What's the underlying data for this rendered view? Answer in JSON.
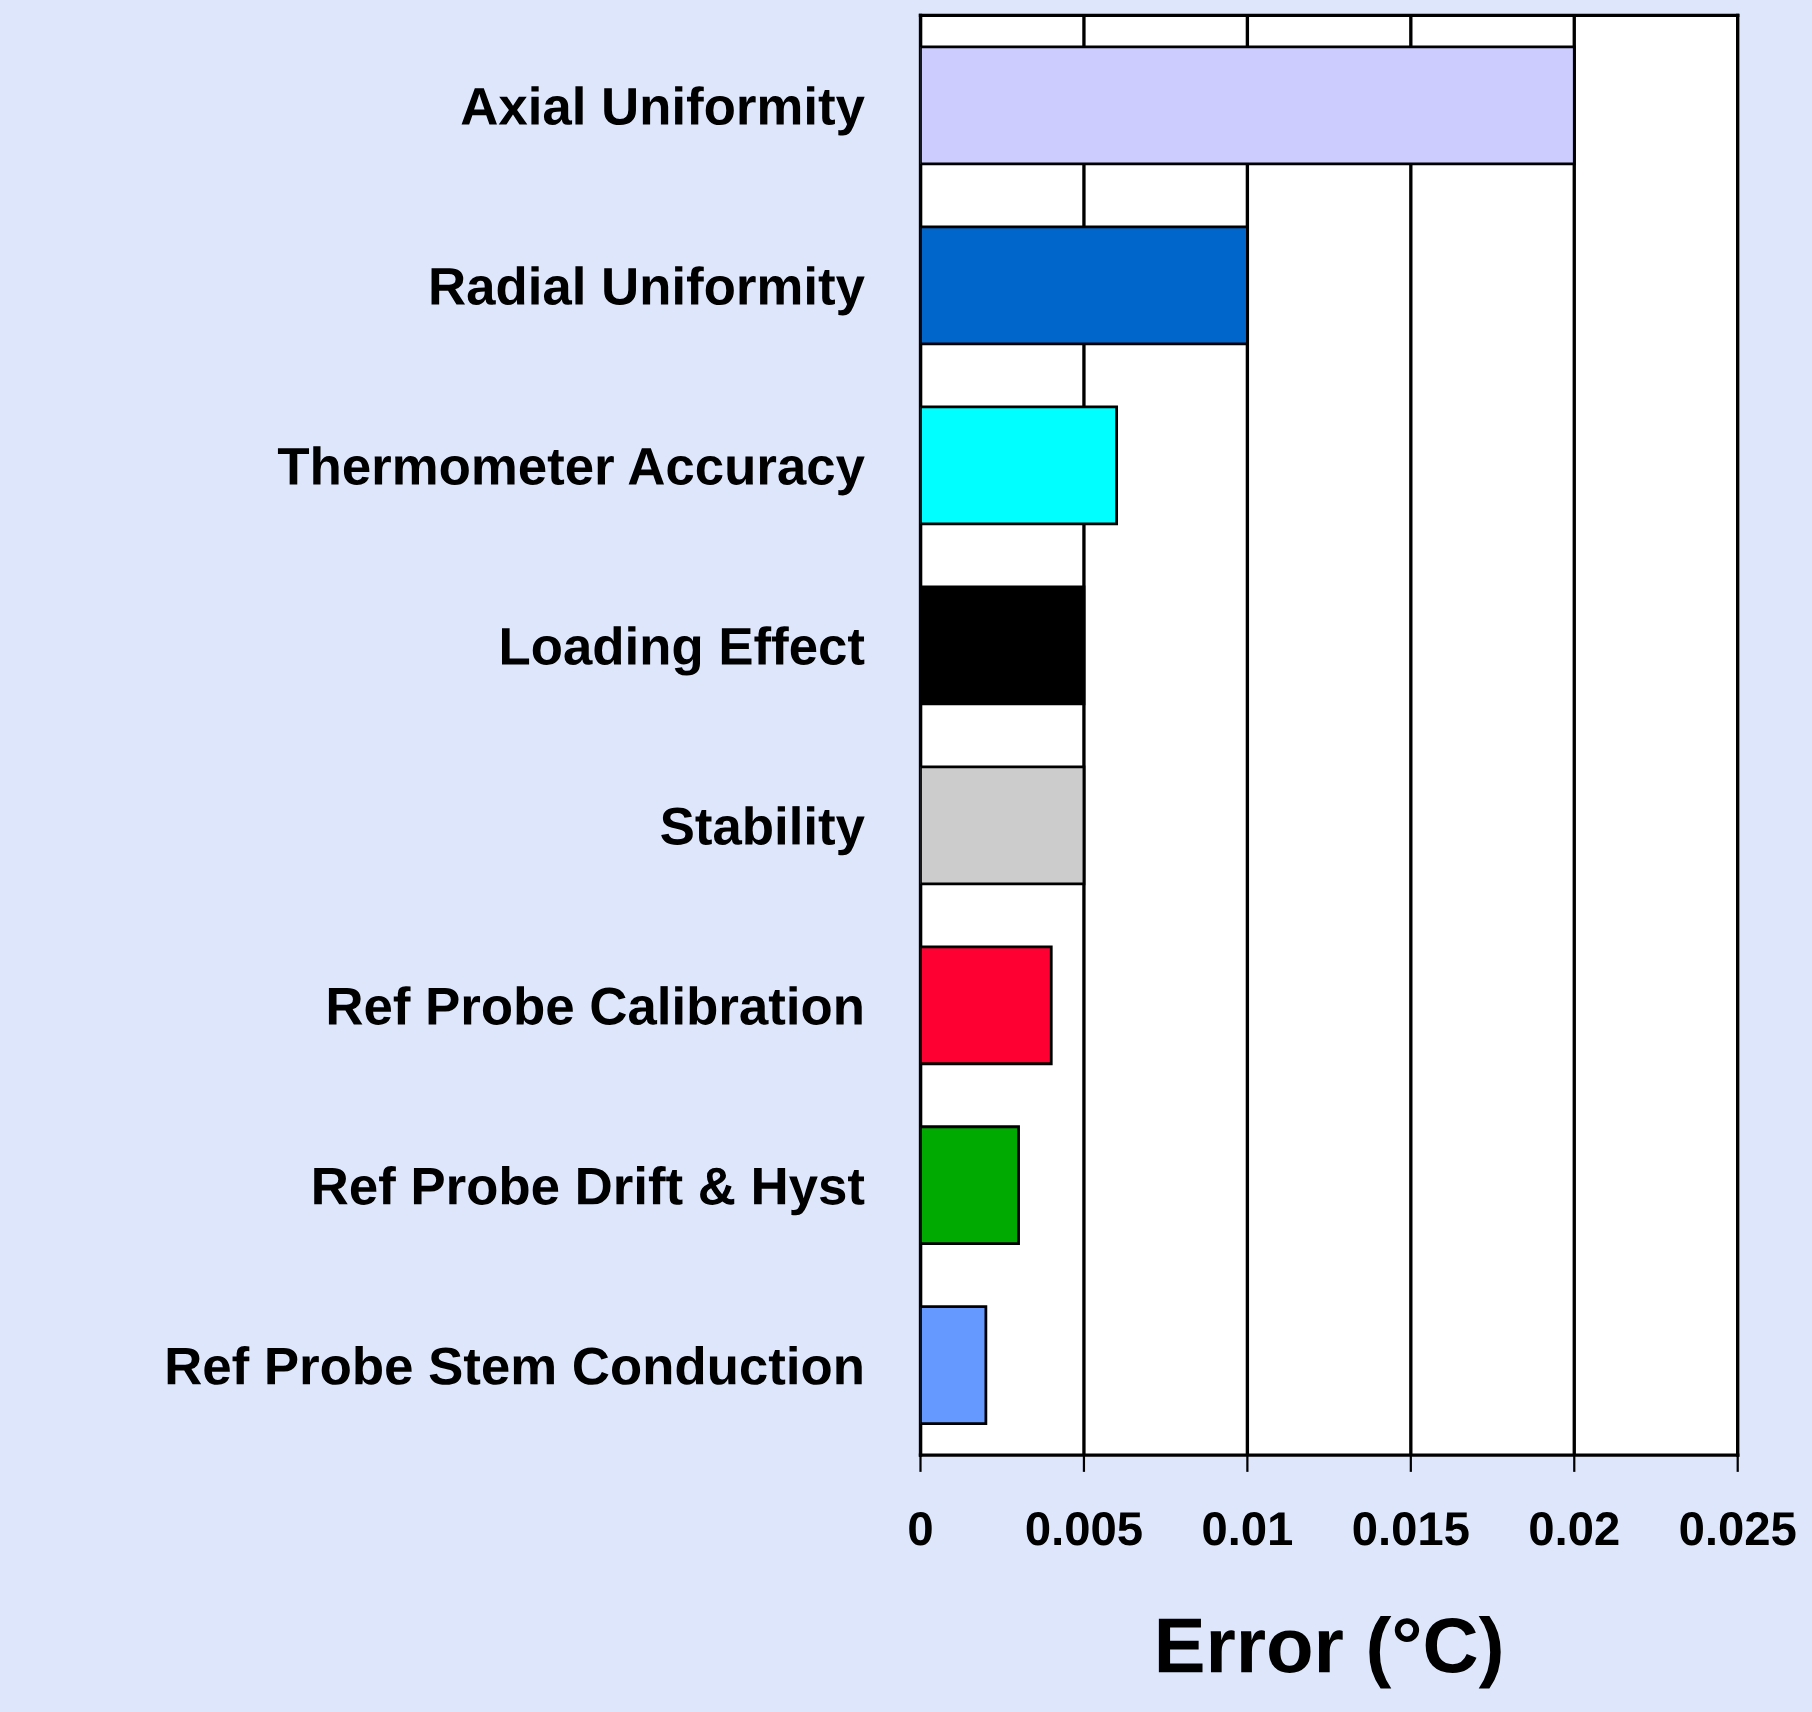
{
  "chart_data": {
    "type": "bar",
    "orientation": "horizontal",
    "xlabel": "Error (°C)",
    "categories": [
      "Axial Uniformity",
      "Radial Uniformity",
      "Thermometer Accuracy",
      "Loading Effect",
      "Stability",
      "Ref Probe Calibration",
      "Ref Probe Drift & Hyst",
      "Ref Probe Stem Conduction"
    ],
    "values": [
      0.02,
      0.01,
      0.006,
      0.005,
      0.005,
      0.004,
      0.003,
      0.002
    ],
    "colors": [
      "#ccccff",
      "#0066cc",
      "#00ffff",
      "#000000",
      "#cccccc",
      "#ff0033",
      "#00aa00",
      "#6699ff"
    ],
    "xlim": [
      0,
      0.025
    ],
    "xticks": [
      0,
      0.005,
      0.01,
      0.015,
      0.02,
      0.025
    ],
    "grid": "x",
    "legend": false
  }
}
